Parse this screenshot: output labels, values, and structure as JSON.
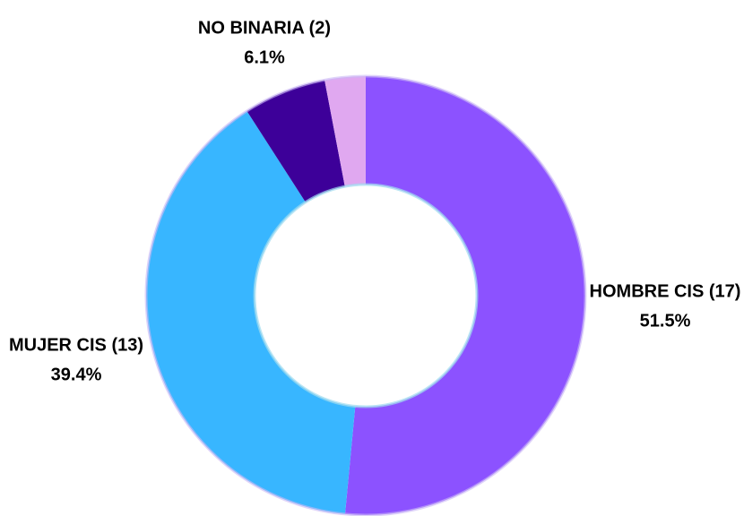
{
  "chart_data": {
    "type": "donut",
    "categories": [
      "HOMBRE CIS (17)",
      "MUJER CIS (13)",
      "NO BINARIA (2)",
      null
    ],
    "values": [
      51.5,
      39.4,
      6.1,
      3.0
    ],
    "value_labels": [
      "51.5%",
      "39.4%",
      "6.1%",
      null
    ],
    "colors": [
      "#8c52ff",
      "#38b6ff",
      "#3d0099",
      "#e0a8f0"
    ]
  }
}
